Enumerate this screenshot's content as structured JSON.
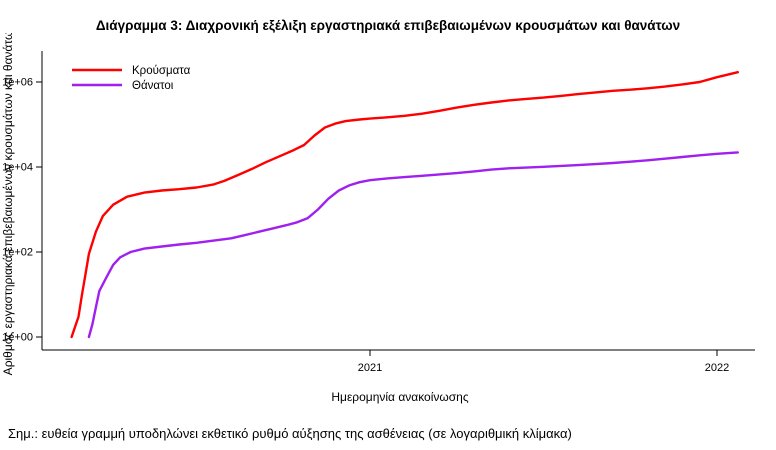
{
  "note": "Σημ.: ευθεία γραμμή υποδηλώνει εκθετικό ρυθμό αύξησης της ασθένειας (σε λογαριθμική κλίμακα)",
  "chart_data": {
    "type": "line",
    "title": "Διάγραμμα 3: Διαχρονική εξέλιξη εργαστηριακά επιβεβαιωμένων κρουσμάτων και θανάτων",
    "xlabel": "Ημερομηνία ανακοίνωσης",
    "ylabel": "Αριθμός εργαστηριακά επιβεβαιωμένων κρουσμάτων και θανάτων",
    "y_scale": "log10",
    "grid": false,
    "legend_position": "top-left",
    "x_range": [
      2020.05,
      2022.12
    ],
    "y_range": [
      1,
      3000000
    ],
    "y_ticks": [
      {
        "value": 1,
        "label": "1e+00"
      },
      {
        "value": 100,
        "label": "1e+02"
      },
      {
        "value": 10000,
        "label": "1e+04"
      },
      {
        "value": 1000000,
        "label": "1e+06"
      }
    ],
    "x_ticks": [
      {
        "value": 2021,
        "label": "2021"
      },
      {
        "value": 2022,
        "label": "2022"
      }
    ],
    "series": [
      {
        "name": "Κρούσματα",
        "color": "#FF0000",
        "points": [
          [
            2020.14,
            1
          ],
          [
            2020.16,
            3
          ],
          [
            2020.17,
            10
          ],
          [
            2020.18,
            30
          ],
          [
            2020.19,
            90
          ],
          [
            2020.21,
            300
          ],
          [
            2020.23,
            700
          ],
          [
            2020.26,
            1300
          ],
          [
            2020.3,
            2000
          ],
          [
            2020.35,
            2500
          ],
          [
            2020.4,
            2800
          ],
          [
            2020.45,
            3000
          ],
          [
            2020.5,
            3300
          ],
          [
            2020.55,
            3900
          ],
          [
            2020.58,
            4700
          ],
          [
            2020.62,
            6500
          ],
          [
            2020.66,
            9000
          ],
          [
            2020.7,
            13000
          ],
          [
            2020.74,
            18000
          ],
          [
            2020.78,
            25000
          ],
          [
            2020.81,
            33000
          ],
          [
            2020.84,
            55000
          ],
          [
            2020.87,
            85000
          ],
          [
            2020.9,
            105000
          ],
          [
            2020.93,
            120000
          ],
          [
            2020.97,
            131000
          ],
          [
            2021.0,
            138000
          ],
          [
            2021.05,
            148000
          ],
          [
            2021.1,
            160000
          ],
          [
            2021.15,
            180000
          ],
          [
            2021.2,
            210000
          ],
          [
            2021.25,
            250000
          ],
          [
            2021.3,
            290000
          ],
          [
            2021.35,
            330000
          ],
          [
            2021.4,
            370000
          ],
          [
            2021.45,
            400000
          ],
          [
            2021.5,
            430000
          ],
          [
            2021.55,
            470000
          ],
          [
            2021.6,
            520000
          ],
          [
            2021.65,
            570000
          ],
          [
            2021.7,
            620000
          ],
          [
            2021.75,
            660000
          ],
          [
            2021.8,
            710000
          ],
          [
            2021.85,
            780000
          ],
          [
            2021.9,
            880000
          ],
          [
            2021.95,
            1000000
          ],
          [
            2022.0,
            1300000
          ],
          [
            2022.06,
            1700000
          ]
        ]
      },
      {
        "name": "Θάνατοι",
        "color": "#A020F0",
        "points": [
          [
            2020.19,
            1
          ],
          [
            2020.2,
            2
          ],
          [
            2020.21,
            5
          ],
          [
            2020.22,
            12
          ],
          [
            2020.24,
            25
          ],
          [
            2020.26,
            50
          ],
          [
            2020.28,
            75
          ],
          [
            2020.31,
            100
          ],
          [
            2020.35,
            120
          ],
          [
            2020.4,
            135
          ],
          [
            2020.45,
            150
          ],
          [
            2020.5,
            165
          ],
          [
            2020.55,
            185
          ],
          [
            2020.6,
            210
          ],
          [
            2020.64,
            250
          ],
          [
            2020.68,
            300
          ],
          [
            2020.72,
            360
          ],
          [
            2020.76,
            430
          ],
          [
            2020.79,
            500
          ],
          [
            2020.82,
            620
          ],
          [
            2020.85,
            1000
          ],
          [
            2020.88,
            1800
          ],
          [
            2020.91,
            2800
          ],
          [
            2020.94,
            3700
          ],
          [
            2020.97,
            4400
          ],
          [
            2021.0,
            4900
          ],
          [
            2021.05,
            5400
          ],
          [
            2021.1,
            5800
          ],
          [
            2021.15,
            6200
          ],
          [
            2021.2,
            6700
          ],
          [
            2021.25,
            7200
          ],
          [
            2021.3,
            7900
          ],
          [
            2021.35,
            8700
          ],
          [
            2021.4,
            9300
          ],
          [
            2021.45,
            9700
          ],
          [
            2021.5,
            10100
          ],
          [
            2021.55,
            10600
          ],
          [
            2021.6,
            11100
          ],
          [
            2021.65,
            11700
          ],
          [
            2021.7,
            12400
          ],
          [
            2021.75,
            13300
          ],
          [
            2021.8,
            14400
          ],
          [
            2021.85,
            15700
          ],
          [
            2021.9,
            17200
          ],
          [
            2021.95,
            18800
          ],
          [
            2022.0,
            20500
          ],
          [
            2022.06,
            22000
          ]
        ]
      }
    ]
  }
}
